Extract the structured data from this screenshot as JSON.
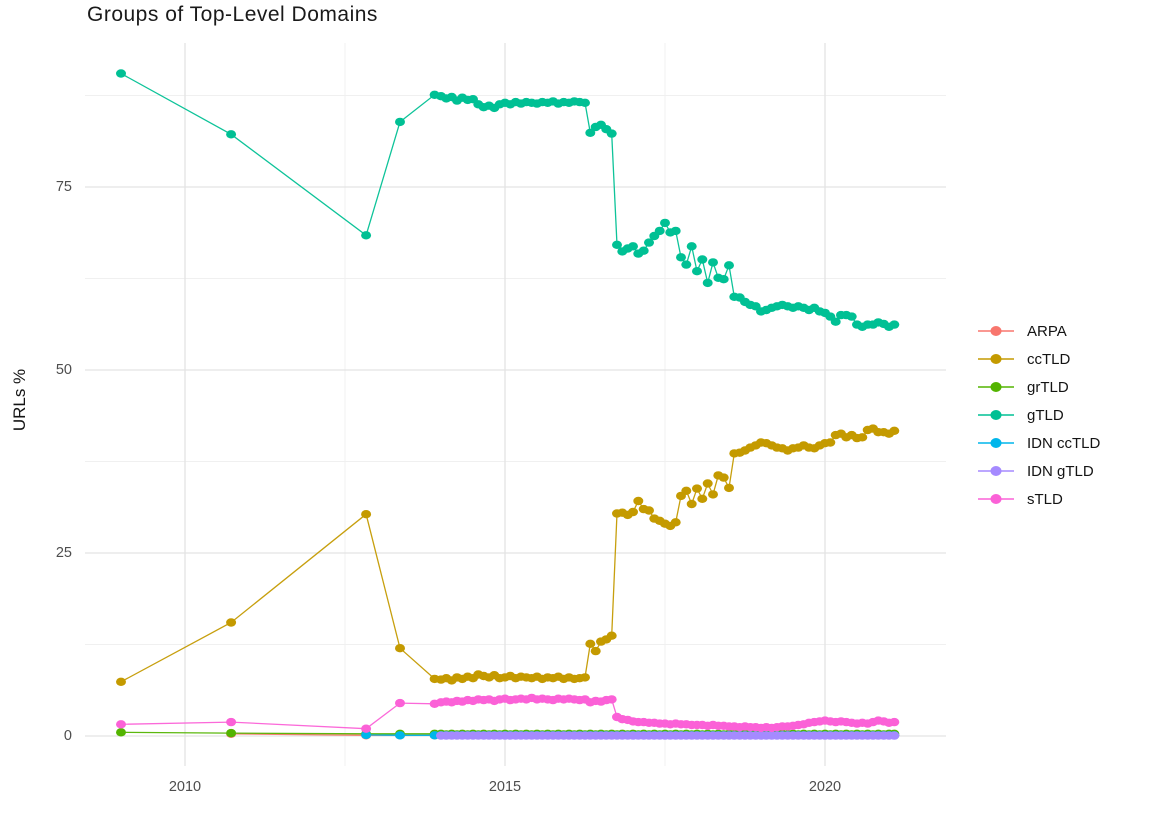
{
  "chart_data": {
    "type": "line",
    "title": "Groups of Top-Level Domains",
    "background": "#ffffff",
    "grid": {
      "major_color": "#e3e3e3",
      "minor_color": "#f0f0f0"
    },
    "x_axis": {
      "tick_labels": [
        "2010",
        "2015",
        "2020"
      ],
      "tick_years": [
        2010,
        2015,
        2020
      ],
      "minor_years": [
        2012.5,
        2017.5
      ],
      "range": [
        2008.45,
        2021.9
      ]
    },
    "y_axis": {
      "label": "URLs %",
      "tick_labels": [
        "0",
        "25",
        "50",
        "75"
      ],
      "tick_values": [
        0,
        25,
        50,
        75
      ],
      "minor_values": [
        12.5,
        37.5,
        62.5,
        87.5
      ],
      "range": [
        -4.7,
        94.7
      ]
    },
    "legend_position": "right",
    "x": [
      2009.0,
      2010.72,
      2012.83,
      2013.36,
      2013.9,
      2014.0,
      2014.083,
      2014.167,
      2014.25,
      2014.333,
      2014.417,
      2014.5,
      2014.583,
      2014.667,
      2014.75,
      2014.833,
      2014.917,
      2015.0,
      2015.083,
      2015.167,
      2015.25,
      2015.333,
      2015.417,
      2015.5,
      2015.583,
      2015.667,
      2015.75,
      2015.833,
      2015.917,
      2016.0,
      2016.083,
      2016.167,
      2016.25,
      2016.333,
      2016.417,
      2016.5,
      2016.583,
      2016.667,
      2016.75,
      2016.833,
      2016.917,
      2017.0,
      2017.083,
      2017.167,
      2017.25,
      2017.333,
      2017.417,
      2017.5,
      2017.583,
      2017.667,
      2017.75,
      2017.833,
      2017.917,
      2018.0,
      2018.083,
      2018.167,
      2018.25,
      2018.333,
      2018.417,
      2018.5,
      2018.583,
      2018.667,
      2018.75,
      2018.833,
      2018.917,
      2019.0,
      2019.083,
      2019.167,
      2019.25,
      2019.333,
      2019.417,
      2019.5,
      2019.583,
      2019.667,
      2019.75,
      2019.833,
      2019.917,
      2020.0,
      2020.083,
      2020.167,
      2020.25,
      2020.333,
      2020.417,
      2020.5,
      2020.583,
      2020.667,
      2020.75,
      2020.833,
      2020.917,
      2021.0,
      2021.083
    ],
    "series": [
      {
        "name": "ARPA",
        "color": "#F8766D",
        "y": [
          null,
          0.3,
          0.1,
          0.1,
          0.1,
          0.1,
          0.1,
          0.1,
          0.1,
          0.1,
          0.1,
          0.1,
          0.1,
          0.1,
          0.1,
          0.1,
          0.1,
          0.1,
          0.1,
          0.1,
          0.1,
          0.1,
          0.1,
          0.1,
          0.1,
          0.1,
          0.1,
          0.1,
          0.1,
          0.1,
          0.1,
          0.1,
          0.1,
          0.1,
          0.1,
          0.1,
          0.1,
          0.1,
          0.1,
          0.1,
          0.1,
          0.1,
          0.1,
          0.1,
          0.1,
          0.1,
          0.1,
          0.1,
          0.1,
          0.1,
          0.1,
          0.1,
          0.1,
          0.1,
          0.1,
          0.1,
          0.1,
          0.1,
          0.1,
          0.1,
          0.1,
          0.1,
          0.1,
          0.1,
          0.1,
          0.1,
          0.1,
          0.1,
          0.1,
          0.1,
          0.1,
          0.1,
          0.1,
          0.1,
          0.1,
          0.1,
          0.1,
          0.1,
          0.1,
          0.1,
          0.1,
          0.1,
          0.1,
          0.1,
          0.1,
          0.1,
          0.1,
          0.1,
          0.1,
          0.1,
          0.1
        ]
      },
      {
        "name": "ccTLD",
        "color": "#C49A00",
        "y": [
          7.4,
          15.5,
          30.3,
          12.0,
          7.8,
          7.7,
          7.9,
          7.6,
          8.0,
          7.8,
          8.1,
          7.9,
          8.4,
          8.2,
          8.0,
          8.3,
          7.9,
          8.0,
          8.2,
          7.9,
          8.1,
          8.0,
          7.9,
          8.1,
          7.8,
          8.0,
          7.9,
          8.1,
          7.8,
          8.0,
          7.8,
          7.9,
          8.0,
          12.6,
          11.6,
          12.9,
          13.2,
          13.7,
          30.4,
          30.5,
          30.2,
          30.6,
          32.1,
          31.0,
          30.8,
          29.7,
          29.4,
          29.0,
          28.7,
          29.2,
          32.8,
          33.5,
          31.7,
          33.8,
          32.4,
          34.5,
          33.0,
          35.6,
          35.3,
          33.9,
          38.6,
          38.7,
          39.0,
          39.4,
          39.7,
          40.1,
          40.0,
          39.7,
          39.4,
          39.3,
          39.0,
          39.3,
          39.4,
          39.7,
          39.4,
          39.3,
          39.7,
          40.0,
          40.1,
          41.1,
          41.3,
          40.8,
          41.1,
          40.7,
          40.8,
          41.8,
          42.0,
          41.5,
          41.5,
          41.3,
          41.7
        ]
      },
      {
        "name": "grTLD",
        "color": "#53B400",
        "y": [
          0.5,
          0.4,
          0.3,
          0.3,
          0.3,
          0.3,
          0.2,
          0.3,
          0.2,
          0.3,
          0.2,
          0.3,
          0.2,
          0.3,
          0.2,
          0.3,
          0.2,
          0.3,
          0.2,
          0.3,
          0.2,
          0.3,
          0.2,
          0.3,
          0.2,
          0.3,
          0.2,
          0.3,
          0.2,
          0.3,
          0.2,
          0.3,
          0.2,
          0.3,
          0.2,
          0.3,
          0.2,
          0.3,
          0.2,
          0.3,
          0.2,
          0.3,
          0.2,
          0.3,
          0.2,
          0.3,
          0.2,
          0.3,
          0.2,
          0.3,
          0.2,
          0.3,
          0.2,
          0.3,
          0.2,
          0.3,
          0.2,
          0.3,
          0.2,
          0.3,
          0.2,
          0.3,
          0.2,
          0.3,
          0.2,
          0.3,
          0.2,
          0.3,
          0.2,
          0.3,
          0.2,
          0.3,
          0.2,
          0.3,
          0.2,
          0.3,
          0.2,
          0.3,
          0.2,
          0.3,
          0.2,
          0.3,
          0.2,
          0.3,
          0.2,
          0.3,
          0.2,
          0.3,
          0.2,
          0.3,
          0.3
        ]
      },
      {
        "name": "gTLD",
        "color": "#00C094",
        "y": [
          90.5,
          82.2,
          68.4,
          83.9,
          87.6,
          87.4,
          87.1,
          87.3,
          86.8,
          87.2,
          86.9,
          87.0,
          86.3,
          85.9,
          86.1,
          85.8,
          86.3,
          86.5,
          86.3,
          86.6,
          86.4,
          86.6,
          86.5,
          86.4,
          86.6,
          86.5,
          86.7,
          86.4,
          86.6,
          86.5,
          86.7,
          86.6,
          86.5,
          82.4,
          83.2,
          83.5,
          82.9,
          82.3,
          67.1,
          66.2,
          66.6,
          66.9,
          65.9,
          66.3,
          67.4,
          68.3,
          69.0,
          70.1,
          68.8,
          69.0,
          65.4,
          64.4,
          66.9,
          63.5,
          65.1,
          61.9,
          64.7,
          62.6,
          62.4,
          64.3,
          60.0,
          59.9,
          59.3,
          58.9,
          58.7,
          58.0,
          58.2,
          58.5,
          58.7,
          58.9,
          58.7,
          58.5,
          58.7,
          58.5,
          58.2,
          58.5,
          58.0,
          57.8,
          57.3,
          56.6,
          57.5,
          57.5,
          57.3,
          56.2,
          55.9,
          56.2,
          56.2,
          56.5,
          56.3,
          55.9,
          56.2
        ]
      },
      {
        "name": "IDN ccTLD",
        "color": "#00B6EB",
        "y": [
          null,
          null,
          0.15,
          0.1,
          0.1,
          0.1,
          0.1,
          0.1,
          0.1,
          0.1,
          0.1,
          0.1,
          0.1,
          0.1,
          0.1,
          0.1,
          0.1,
          0.1,
          0.1,
          0.1,
          0.1,
          0.1,
          0.1,
          0.1,
          0.1,
          0.1,
          0.1,
          0.1,
          0.1,
          0.1,
          0.1,
          0.1,
          0.1,
          0.1,
          0.1,
          0.1,
          0.1,
          0.1,
          0.1,
          0.1,
          0.1,
          0.1,
          0.1,
          0.1,
          0.1,
          0.1,
          0.1,
          0.1,
          0.1,
          0.1,
          0.1,
          0.1,
          0.1,
          0.1,
          0.1,
          0.1,
          0.1,
          0.1,
          0.1,
          0.1,
          0.1,
          0.1,
          0.1,
          0.1,
          0.1,
          0.1,
          0.1,
          0.1,
          0.1,
          0.1,
          0.1,
          0.1,
          0.1,
          0.1,
          0.1,
          0.1,
          0.1,
          0.1,
          0.1,
          0.1,
          0.1,
          0.1,
          0.1,
          0.1,
          0.1,
          0.1,
          0.1,
          0.1,
          0.1,
          0.1,
          0.1
        ]
      },
      {
        "name": "IDN gTLD",
        "color": "#A58AFF",
        "y": [
          null,
          null,
          null,
          null,
          null,
          0.05,
          0.05,
          0.05,
          0.05,
          0.05,
          0.05,
          0.05,
          0.05,
          0.05,
          0.05,
          0.05,
          0.05,
          0.05,
          0.05,
          0.05,
          0.05,
          0.05,
          0.05,
          0.05,
          0.05,
          0.05,
          0.05,
          0.05,
          0.05,
          0.05,
          0.05,
          0.05,
          0.05,
          0.05,
          0.05,
          0.05,
          0.05,
          0.05,
          0.05,
          0.05,
          0.05,
          0.05,
          0.05,
          0.05,
          0.05,
          0.05,
          0.05,
          0.05,
          0.05,
          0.05,
          0.05,
          0.05,
          0.05,
          0.05,
          0.05,
          0.05,
          0.05,
          0.05,
          0.05,
          0.05,
          0.05,
          0.05,
          0.05,
          0.05,
          0.05,
          0.05,
          0.05,
          0.05,
          0.05,
          0.05,
          0.05,
          0.05,
          0.05,
          0.05,
          0.05,
          0.05,
          0.05,
          0.05,
          0.05,
          0.05,
          0.05,
          0.05,
          0.05,
          0.05,
          0.05,
          0.05,
          0.05,
          0.05,
          0.05,
          0.05,
          0.05
        ]
      },
      {
        "name": "sTLD",
        "color": "#FB61D7",
        "y": [
          1.6,
          1.9,
          1.0,
          4.5,
          4.4,
          4.6,
          4.7,
          4.6,
          4.8,
          4.7,
          4.9,
          4.8,
          5.0,
          4.9,
          5.0,
          4.8,
          5.0,
          5.1,
          4.9,
          5.0,
          5.1,
          5.0,
          5.2,
          5.0,
          5.1,
          5.0,
          4.9,
          5.1,
          5.0,
          5.1,
          5.0,
          4.9,
          5.0,
          4.6,
          4.8,
          4.7,
          4.9,
          5.0,
          2.6,
          2.3,
          2.2,
          2.0,
          1.9,
          1.9,
          1.8,
          1.8,
          1.7,
          1.7,
          1.6,
          1.7,
          1.6,
          1.6,
          1.5,
          1.5,
          1.5,
          1.4,
          1.5,
          1.4,
          1.4,
          1.3,
          1.3,
          1.2,
          1.3,
          1.2,
          1.2,
          1.1,
          1.2,
          1.1,
          1.2,
          1.3,
          1.3,
          1.4,
          1.5,
          1.6,
          1.8,
          1.9,
          2.0,
          2.1,
          2.0,
          1.9,
          2.0,
          1.9,
          1.8,
          1.7,
          1.8,
          1.7,
          1.9,
          2.1,
          2.0,
          1.8,
          1.9
        ]
      }
    ]
  }
}
